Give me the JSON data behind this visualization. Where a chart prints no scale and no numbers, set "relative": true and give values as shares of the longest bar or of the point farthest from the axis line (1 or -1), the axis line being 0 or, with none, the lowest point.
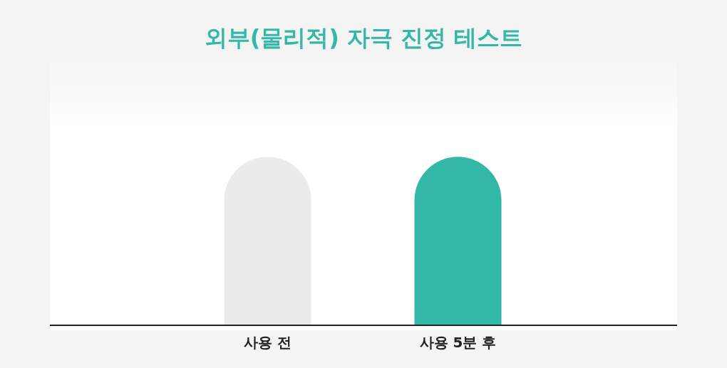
{
  "chart_data": {
    "type": "bar",
    "title": "외부(물리적) 자극 진정 테스트",
    "categories": [
      "사용 전",
      "사용 5분 후"
    ],
    "values": [
      1,
      1
    ],
    "colors": [
      "#ebebeb",
      "#33b8a8"
    ],
    "relative": true,
    "grid": false,
    "legend": false
  }
}
